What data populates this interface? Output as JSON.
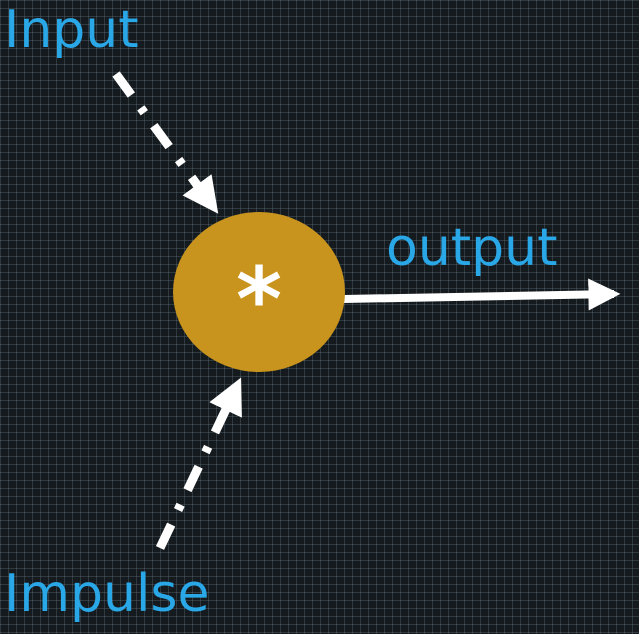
{
  "labels": {
    "input": "Input",
    "output": "output",
    "impulse": "Impulse"
  },
  "operator": {
    "symbol": "*",
    "fill_color": "#c8941e",
    "symbol_color": "#ffffff"
  },
  "colors": {
    "background": "#141a1e",
    "label": "#2aa7e6",
    "arrow": "#ffffff"
  }
}
